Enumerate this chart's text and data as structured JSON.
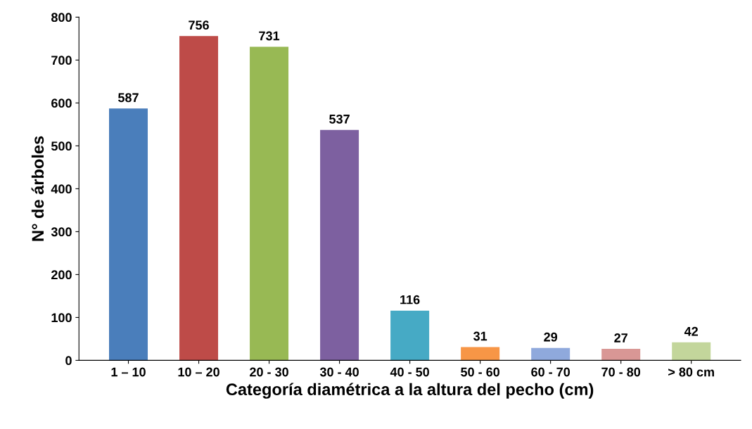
{
  "chart_data": {
    "type": "bar",
    "xlabel": "Categoría diamétrica a la altura del pecho (cm)",
    "ylabel": "N° de árboles",
    "categories": [
      "1 – 10",
      "10 – 20",
      "20 - 30",
      "30 - 40",
      "40 - 50",
      "50 - 60",
      "60 - 70",
      "70 - 80",
      "> 80 cm"
    ],
    "values": [
      587,
      756,
      731,
      537,
      116,
      31,
      29,
      27,
      42
    ],
    "colors": [
      "#4a7ebb",
      "#be4b48",
      "#98b954",
      "#7d60a0",
      "#46aac5",
      "#f79646",
      "#8fa9dc",
      "#d99795",
      "#c3d69b"
    ],
    "ylim": [
      0,
      800
    ],
    "yticks": [
      0,
      100,
      200,
      300,
      400,
      500,
      600,
      700,
      800
    ],
    "data_labels": true,
    "grid": false,
    "legend": false
  }
}
